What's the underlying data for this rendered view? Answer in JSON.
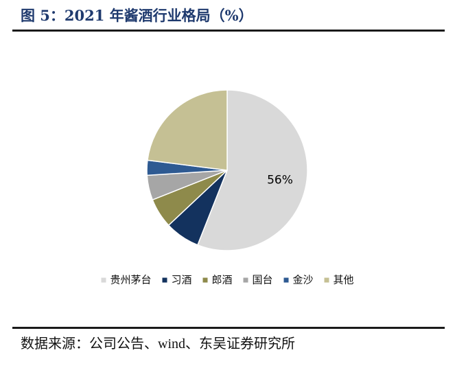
{
  "figure": {
    "title": "图 5：2021 年酱酒行业格局（%）",
    "source": "数据来源：公司公告、wind、东吴证券研究所"
  },
  "chart_data": {
    "type": "pie",
    "title": "",
    "unit": "%",
    "legend_position": "bottom",
    "start_angle": "12 o'clock, clockwise",
    "slices": [
      {
        "name": "贵州茅台",
        "value": 56,
        "label": "56%",
        "color": "#d9d9d9"
      },
      {
        "name": "习酒",
        "value": 7,
        "color": "#13325e"
      },
      {
        "name": "郎酒",
        "value": 6,
        "color": "#8e8a4b"
      },
      {
        "name": "国台",
        "value": 5,
        "color": "#a6a6a6"
      },
      {
        "name": "金沙",
        "value": 3,
        "color": "#2e5a92"
      },
      {
        "name": "其他",
        "value": 23,
        "color": "#c5c094"
      }
    ]
  }
}
